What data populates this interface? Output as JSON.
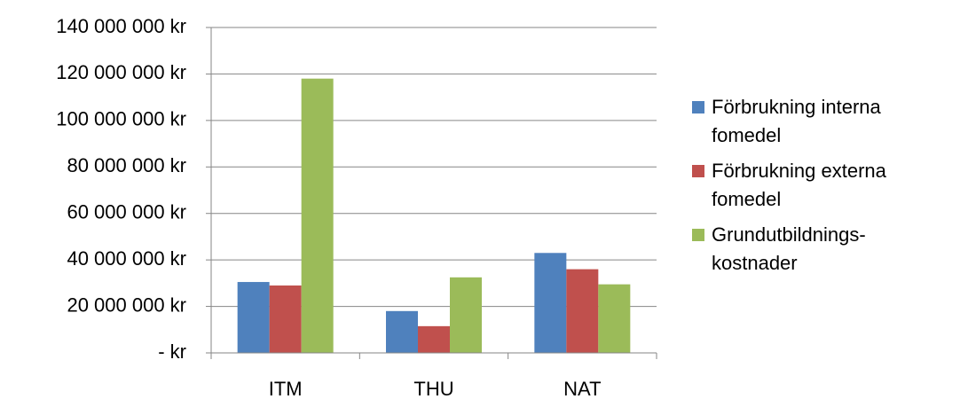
{
  "chart_data": {
    "type": "bar",
    "categories": [
      "ITM",
      "THU",
      "NAT"
    ],
    "series": [
      {
        "name": "Förbrukning interna fomedel",
        "color": "#4f81bd",
        "values": [
          30500000,
          18000000,
          43000000
        ]
      },
      {
        "name": "Förbrukning externa fomedel",
        "color": "#c0504d",
        "values": [
          29000000,
          11500000,
          36000000
        ]
      },
      {
        "name": "Grundutbildnings-kostnader",
        "color": "#9bbb59",
        "values": [
          118000000,
          32500000,
          29500000
        ]
      }
    ],
    "ylim": [
      0,
      140000000
    ],
    "yticks": [
      {
        "value": 0,
        "label": "- kr"
      },
      {
        "value": 20000000,
        "label": "20 000 000 kr"
      },
      {
        "value": 40000000,
        "label": "40 000 000 kr"
      },
      {
        "value": 60000000,
        "label": "60 000 000 kr"
      },
      {
        "value": 80000000,
        "label": "80 000 000 kr"
      },
      {
        "value": 100000000,
        "label": "100 000 000 kr"
      },
      {
        "value": 120000000,
        "label": "120 000 000 kr"
      },
      {
        "value": 140000000,
        "label": "140 000 000 kr"
      }
    ],
    "grid": true,
    "legend": "right"
  }
}
